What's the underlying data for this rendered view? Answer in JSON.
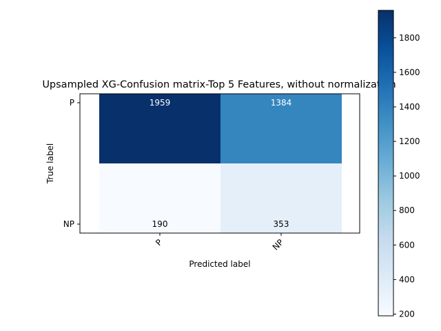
{
  "chart_data": {
    "type": "heatmap",
    "title": "Upsampled XG-Confusion matrix-Top 5 Features, without normalization",
    "xlabel": "Predicted label",
    "ylabel": "True label",
    "x_categories": [
      "P",
      "NP"
    ],
    "y_categories": [
      "P",
      "NP"
    ],
    "values": [
      [
        1959,
        1384
      ],
      [
        190,
        353
      ]
    ],
    "colormap": "Blues",
    "colorbar": {
      "min": 190,
      "max": 1959,
      "ticks": [
        200,
        400,
        600,
        800,
        1000,
        1200,
        1400,
        1600,
        1800
      ]
    },
    "x_tick_rotation": 45,
    "grid": false
  }
}
